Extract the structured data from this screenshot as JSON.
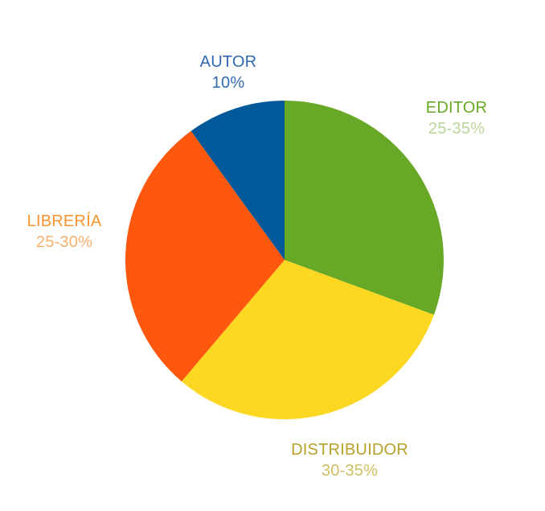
{
  "chart_data": {
    "type": "pie",
    "start_angle_deg": 0,
    "direction": "clockwise",
    "slices": [
      {
        "label": "EDITOR",
        "value_text": "25-35%",
        "value": 30.6,
        "color": "#67a926",
        "label_color": "#67a926",
        "value_color": "#b9d69a"
      },
      {
        "label": "DISTRIBUIDOR",
        "value_text": "30-35%",
        "value": 30.6,
        "color": "#fdd823",
        "label_color": "#b6a12b",
        "value_color": "#d1c061"
      },
      {
        "label": "LIBRERÍA",
        "value_text": "25-30%",
        "value": 28.8,
        "color": "#fe570e",
        "label_color": "#f7942e",
        "value_color": "#f9b06a"
      },
      {
        "label": "AUTOR",
        "value_text": "10%",
        "value": 10.0,
        "color": "#02599a",
        "label_color": "#2f6ab3",
        "value_color": "#2f6ab3"
      }
    ]
  }
}
